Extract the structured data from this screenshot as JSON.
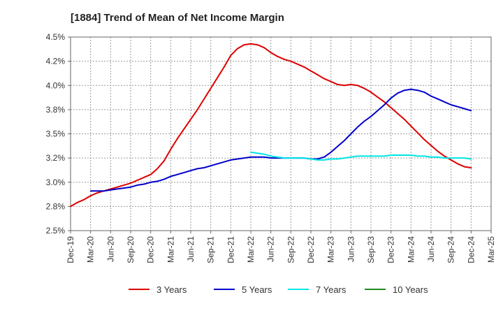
{
  "chart_data": {
    "type": "line",
    "title": "[1884]  Trend of Mean of Net Income Margin",
    "xlabel": "",
    "ylabel": "",
    "x_ticks": [
      "Dec-19",
      "Mar-20",
      "Jun-20",
      "Sep-20",
      "Dec-20",
      "Mar-21",
      "Jun-21",
      "Sep-21",
      "Dec-21",
      "Mar-22",
      "Jun-22",
      "Sep-22",
      "Dec-22",
      "Mar-23",
      "Jun-23",
      "Sep-23",
      "Dec-23",
      "Mar-24",
      "Jun-24",
      "Sep-24",
      "Dec-24",
      "Mar-25"
    ],
    "y_ticks": [
      "2.5%",
      "2.8%",
      "3.0%",
      "3.2%",
      "3.5%",
      "3.8%",
      "4.0%",
      "4.2%",
      "4.5%"
    ],
    "ylim": [
      2.5,
      4.5
    ],
    "grid": true,
    "legend_position": "bottom",
    "series": [
      {
        "name": "3 Years",
        "color": "#dd0000",
        "points": [
          [
            "Dec-19",
            2.75
          ],
          [
            "Jan-20",
            2.79
          ],
          [
            "Feb-20",
            2.82
          ],
          [
            "Mar-20",
            2.86
          ],
          [
            "Apr-20",
            2.89
          ],
          [
            "May-20",
            2.91
          ],
          [
            "Jun-20",
            2.93
          ],
          [
            "Jul-20",
            2.95
          ],
          [
            "Aug-20",
            2.97
          ],
          [
            "Sep-20",
            2.99
          ],
          [
            "Oct-20",
            3.02
          ],
          [
            "Nov-20",
            3.05
          ],
          [
            "Dec-20",
            3.08
          ],
          [
            "Jan-21",
            3.14
          ],
          [
            "Feb-21",
            3.22
          ],
          [
            "Mar-21",
            3.34
          ],
          [
            "Apr-21",
            3.45
          ],
          [
            "May-21",
            3.55
          ],
          [
            "Jun-21",
            3.65
          ],
          [
            "Jul-21",
            3.75
          ],
          [
            "Aug-21",
            3.86
          ],
          [
            "Sep-21",
            3.97
          ],
          [
            "Oct-21",
            4.08
          ],
          [
            "Nov-21",
            4.19
          ],
          [
            "Dec-21",
            4.31
          ],
          [
            "Jan-22",
            4.38
          ],
          [
            "Feb-22",
            4.42
          ],
          [
            "Mar-22",
            4.43
          ],
          [
            "Apr-22",
            4.42
          ],
          [
            "May-22",
            4.39
          ],
          [
            "Jun-22",
            4.34
          ],
          [
            "Jul-22",
            4.3
          ],
          [
            "Aug-22",
            4.27
          ],
          [
            "Sep-22",
            4.25
          ],
          [
            "Oct-22",
            4.22
          ],
          [
            "Nov-22",
            4.19
          ],
          [
            "Dec-22",
            4.15
          ],
          [
            "Jan-23",
            4.11
          ],
          [
            "Feb-23",
            4.07
          ],
          [
            "Mar-23",
            4.04
          ],
          [
            "Apr-23",
            4.01
          ],
          [
            "May-23",
            4.0
          ],
          [
            "Jun-23",
            4.01
          ],
          [
            "Jul-23",
            4.0
          ],
          [
            "Aug-23",
            3.97
          ],
          [
            "Sep-23",
            3.93
          ],
          [
            "Oct-23",
            3.88
          ],
          [
            "Nov-23",
            3.83
          ],
          [
            "Dec-23",
            3.77
          ],
          [
            "Jan-24",
            3.71
          ],
          [
            "Feb-24",
            3.65
          ],
          [
            "Mar-24",
            3.58
          ],
          [
            "Apr-24",
            3.51
          ],
          [
            "May-24",
            3.44
          ],
          [
            "Jun-24",
            3.38
          ],
          [
            "Jul-24",
            3.32
          ],
          [
            "Aug-24",
            3.27
          ],
          [
            "Sep-24",
            3.23
          ],
          [
            "Oct-24",
            3.19
          ],
          [
            "Nov-24",
            3.16
          ],
          [
            "Dec-24",
            3.15
          ]
        ]
      },
      {
        "name": "5 Years",
        "color": "#0000cc",
        "points": [
          [
            "Dec-19",
            null
          ],
          [
            "Mar-20",
            2.91
          ],
          [
            "Apr-20",
            2.91
          ],
          [
            "May-20",
            2.91
          ],
          [
            "Jun-20",
            2.92
          ],
          [
            "Jul-20",
            2.93
          ],
          [
            "Aug-20",
            2.94
          ],
          [
            "Sep-20",
            2.95
          ],
          [
            "Oct-20",
            2.97
          ],
          [
            "Nov-20",
            2.98
          ],
          [
            "Dec-20",
            3.0
          ],
          [
            "Jan-21",
            3.01
          ],
          [
            "Feb-21",
            3.03
          ],
          [
            "Mar-21",
            3.06
          ],
          [
            "Apr-21",
            3.08
          ],
          [
            "May-21",
            3.1
          ],
          [
            "Jun-21",
            3.12
          ],
          [
            "Jul-21",
            3.14
          ],
          [
            "Aug-21",
            3.15
          ],
          [
            "Sep-21",
            3.17
          ],
          [
            "Oct-21",
            3.19
          ],
          [
            "Nov-21",
            3.21
          ],
          [
            "Dec-21",
            3.23
          ],
          [
            "Jan-22",
            3.24
          ],
          [
            "Feb-22",
            3.25
          ],
          [
            "Mar-22",
            3.26
          ],
          [
            "Apr-22",
            3.26
          ],
          [
            "May-22",
            3.26
          ],
          [
            "Jun-22",
            3.25
          ],
          [
            "Jul-22",
            3.25
          ],
          [
            "Aug-22",
            3.25
          ],
          [
            "Sep-22",
            3.25
          ],
          [
            "Oct-22",
            3.25
          ],
          [
            "Nov-22",
            3.25
          ],
          [
            "Dec-22",
            3.24
          ],
          [
            "Jan-23",
            3.24
          ],
          [
            "Feb-23",
            3.26
          ],
          [
            "Mar-23",
            3.31
          ],
          [
            "Apr-23",
            3.37
          ],
          [
            "May-23",
            3.43
          ],
          [
            "Jun-23",
            3.5
          ],
          [
            "Jul-23",
            3.57
          ],
          [
            "Aug-23",
            3.63
          ],
          [
            "Sep-23",
            3.68
          ],
          [
            "Oct-23",
            3.74
          ],
          [
            "Nov-23",
            3.8
          ],
          [
            "Dec-23",
            3.87
          ],
          [
            "Jan-24",
            3.92
          ],
          [
            "Feb-24",
            3.95
          ],
          [
            "Mar-24",
            3.96
          ],
          [
            "Apr-24",
            3.95
          ],
          [
            "May-24",
            3.93
          ],
          [
            "Jun-24",
            3.89
          ],
          [
            "Jul-24",
            3.86
          ],
          [
            "Aug-24",
            3.83
          ],
          [
            "Sep-24",
            3.8
          ],
          [
            "Oct-24",
            3.78
          ],
          [
            "Nov-24",
            3.76
          ],
          [
            "Dec-24",
            3.74
          ]
        ]
      },
      {
        "name": "7 Years",
        "color": "#00e5e5",
        "points": [
          [
            "Mar-22",
            3.31
          ],
          [
            "Apr-22",
            3.3
          ],
          [
            "May-22",
            3.29
          ],
          [
            "Jun-22",
            3.27
          ],
          [
            "Jul-22",
            3.26
          ],
          [
            "Aug-22",
            3.25
          ],
          [
            "Sep-22",
            3.25
          ],
          [
            "Oct-22",
            3.25
          ],
          [
            "Nov-22",
            3.25
          ],
          [
            "Dec-22",
            3.24
          ],
          [
            "Jan-23",
            3.23
          ],
          [
            "Feb-23",
            3.23
          ],
          [
            "Mar-23",
            3.24
          ],
          [
            "Apr-23",
            3.24
          ],
          [
            "May-23",
            3.25
          ],
          [
            "Jun-23",
            3.26
          ],
          [
            "Jul-23",
            3.27
          ],
          [
            "Aug-23",
            3.27
          ],
          [
            "Sep-23",
            3.27
          ],
          [
            "Oct-23",
            3.27
          ],
          [
            "Nov-23",
            3.27
          ],
          [
            "Dec-23",
            3.28
          ],
          [
            "Jan-24",
            3.28
          ],
          [
            "Feb-24",
            3.28
          ],
          [
            "Mar-24",
            3.28
          ],
          [
            "Apr-24",
            3.27
          ],
          [
            "May-24",
            3.27
          ],
          [
            "Jun-24",
            3.26
          ],
          [
            "Jul-24",
            3.26
          ],
          [
            "Aug-24",
            3.25
          ],
          [
            "Sep-24",
            3.25
          ],
          [
            "Oct-24",
            3.25
          ],
          [
            "Nov-24",
            3.25
          ],
          [
            "Dec-24",
            3.24
          ]
        ]
      },
      {
        "name": "10 Years",
        "color": "#228b22",
        "points": []
      }
    ]
  }
}
